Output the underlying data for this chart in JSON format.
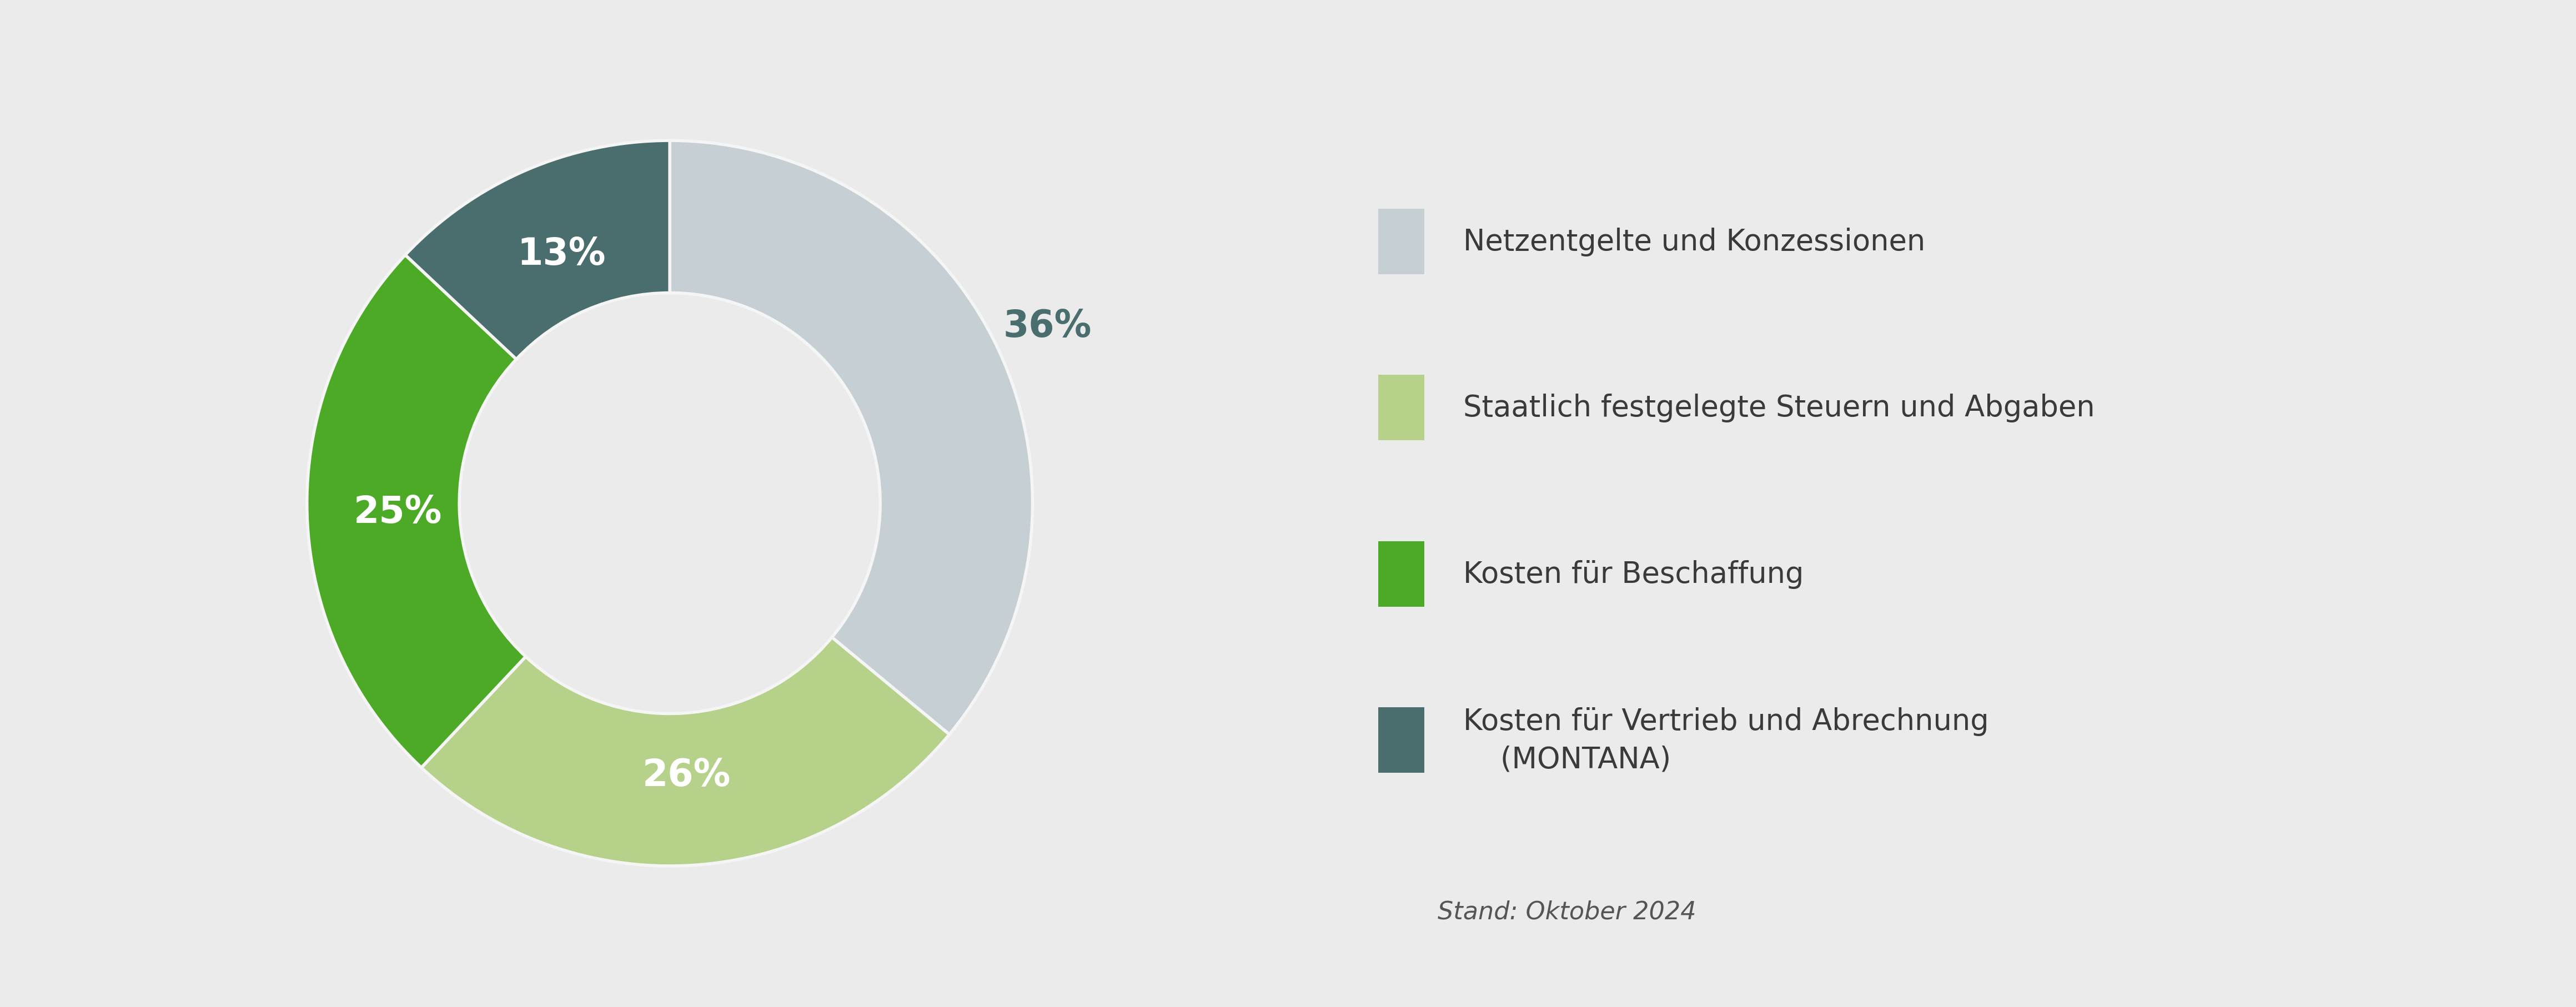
{
  "values": [
    36,
    26,
    25,
    13
  ],
  "labels": [
    "36%",
    "26%",
    "25%",
    "13%"
  ],
  "label_colors": [
    "#4a6d6e",
    "#ffffff",
    "#ffffff",
    "#ffffff"
  ],
  "label_radii": [
    1.15,
    0.75,
    0.75,
    0.75
  ],
  "colors": [
    "#c5cfd4",
    "#b5d18a",
    "#4caa27",
    "#4a6d6e"
  ],
  "legend_labels": [
    "Netzentgelte und Konzessionen",
    "Staatlich festgelegte Steuern und Abgaben",
    "Kosten für Beschaffung",
    "Kosten für Vertrieb und Abrechnung\n    (MONTANA)"
  ],
  "legend_colors": [
    "#c5cfd4",
    "#b5d18a",
    "#4caa27",
    "#4a6d6e"
  ],
  "background_color": "#ebebeb",
  "label_fontsize": 48,
  "legend_fontsize": 38,
  "note_text": "Stand: Oktober 2024",
  "note_fontsize": 32,
  "startangle": 90,
  "donut_width": 0.42,
  "edge_color": "#f5f5f5",
  "edge_linewidth": 4
}
